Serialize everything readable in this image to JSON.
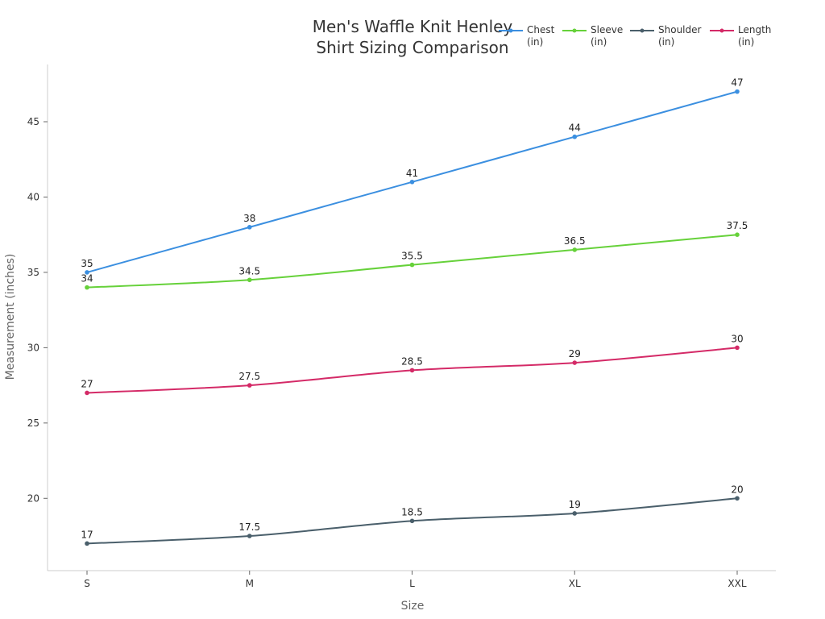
{
  "chart_data": {
    "type": "line",
    "title_line1": "Men's Waffle Knit Henley",
    "title_line2": "Shirt Sizing Comparison",
    "xlabel": "Size",
    "ylabel": "Measurement (inches)",
    "categories": [
      "S",
      "M",
      "L",
      "XL",
      "XXL"
    ],
    "ylim": [
      15.2,
      48.8
    ],
    "yticks": [
      20,
      25,
      30,
      35,
      40,
      45
    ],
    "grid": false,
    "legend_position": "top-right",
    "series": [
      {
        "name_line1": "Chest",
        "name_line2": "(in)",
        "color": "#3b8fe0",
        "values": [
          35,
          38,
          41,
          44,
          47
        ]
      },
      {
        "name_line1": "Sleeve",
        "name_line2": "(in)",
        "color": "#66d13a",
        "values": [
          34,
          34.5,
          35.5,
          36.5,
          37.5
        ]
      },
      {
        "name_line1": "Shoulder",
        "name_line2": "(in)",
        "color": "#4a5f6b",
        "values": [
          17,
          17.5,
          18.5,
          19,
          20
        ]
      },
      {
        "name_line1": "Length",
        "name_line2": "(in)",
        "color": "#d42a67",
        "values": [
          27,
          27.5,
          28.5,
          29,
          30
        ]
      }
    ]
  }
}
